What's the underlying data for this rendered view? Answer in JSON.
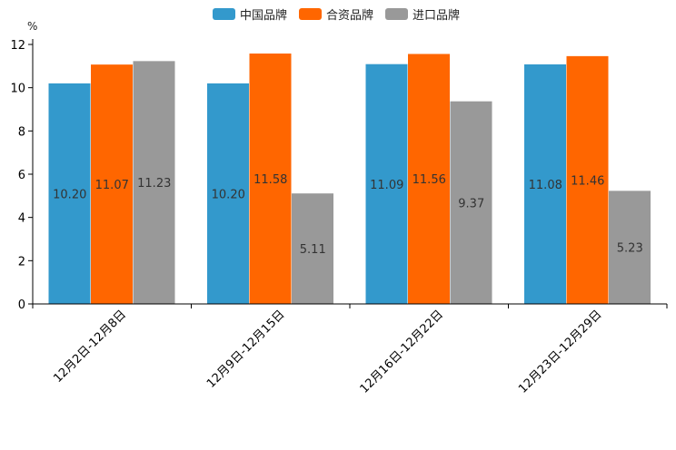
{
  "chart_data": {
    "type": "bar",
    "title": "",
    "xlabel": "",
    "ylabel": "%",
    "ylim": [
      0,
      12
    ],
    "yticks": [
      0,
      2,
      4,
      6,
      8,
      10,
      12
    ],
    "categories": [
      "12月2日-12月8日",
      "12月9日-12月15日",
      "12月16日-12月22日",
      "12月23日-12月29日"
    ],
    "series": [
      {
        "name": "中国品牌",
        "color": "#3399cc",
        "values": [
          10.2,
          10.2,
          11.09,
          11.08
        ],
        "labels": [
          "10.20",
          "10.20",
          "11.09",
          "11.08"
        ]
      },
      {
        "name": "合资品牌",
        "color": "#ff6600",
        "values": [
          11.07,
          11.58,
          11.56,
          11.46
        ],
        "labels": [
          "11.07",
          "11.58",
          "11.56",
          "11.46"
        ]
      },
      {
        "name": "进口品牌",
        "color": "#999999",
        "values": [
          11.23,
          5.11,
          9.37,
          5.23
        ],
        "labels": [
          "11.23",
          "5.11",
          "9.37",
          "5.23"
        ]
      }
    ],
    "legend_position": "top-center",
    "grid": false
  }
}
